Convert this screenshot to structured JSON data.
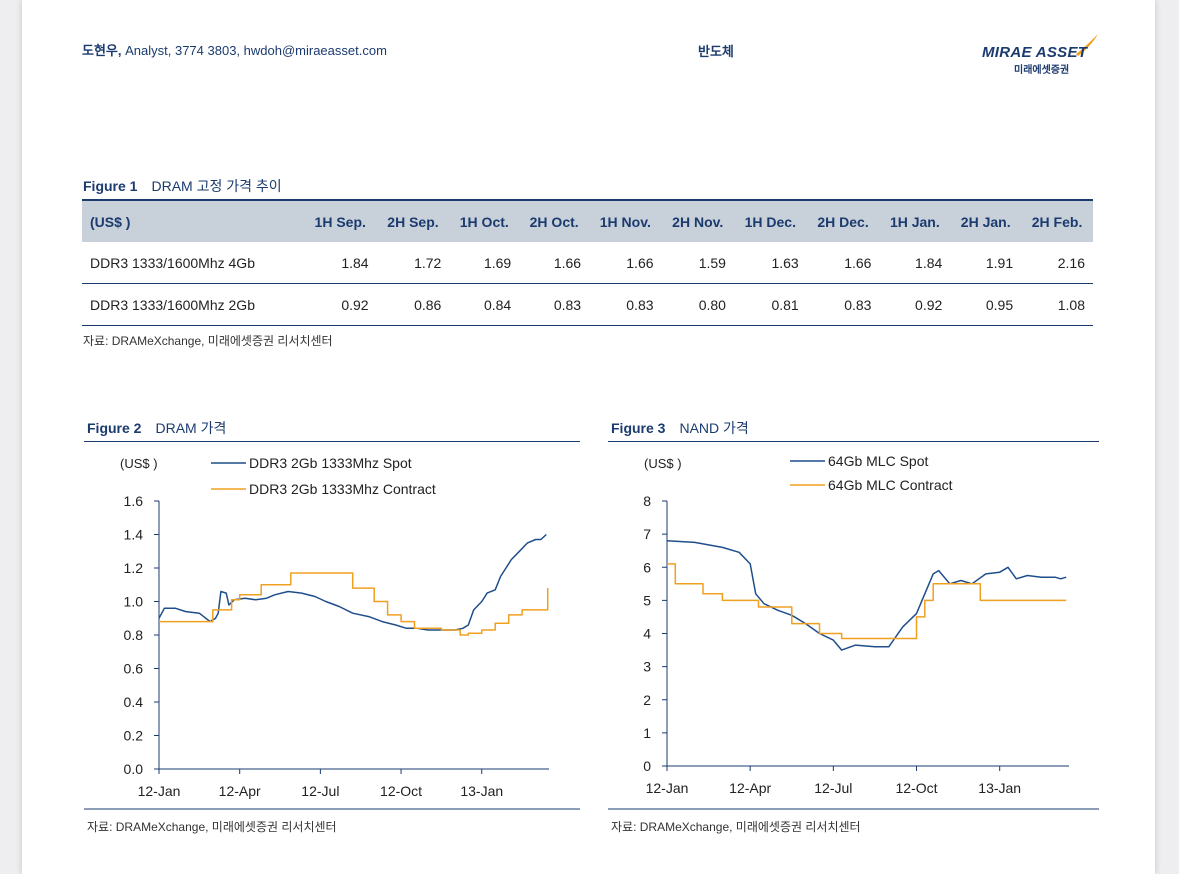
{
  "header": {
    "author_name": "도현우,",
    "author_detail": " Analyst, 3774 3803, hwdoh@miraeasset.com",
    "sector": "반도체",
    "logo_main": "MIRAE ASSET",
    "logo_sub": "미래에셋증권"
  },
  "figure1": {
    "label": "Figure 1",
    "title": "DRAM 고정 가격 추이",
    "unit_header": "(US$ )",
    "columns": [
      "1H Sep.",
      "2H Sep.",
      "1H Oct.",
      "2H Oct.",
      "1H Nov.",
      "2H Nov.",
      "1H Dec.",
      "2H Dec.",
      "1H Jan.",
      "2H Jan.",
      "2H Feb."
    ],
    "rows": [
      {
        "label": "DDR3 1333/1600Mhz 4Gb",
        "values": [
          "1.84",
          "1.72",
          "1.69",
          "1.66",
          "1.66",
          "1.59",
          "1.63",
          "1.66",
          "1.84",
          "1.91",
          "2.16"
        ]
      },
      {
        "label": "DDR3 1333/1600Mhz 2Gb",
        "values": [
          "0.92",
          "0.86",
          "0.84",
          "0.83",
          "0.83",
          "0.80",
          "0.81",
          "0.83",
          "0.92",
          "0.95",
          "1.08"
        ]
      }
    ],
    "source": "자료: DRAMeXchange, 미래에셋증권 리서치센터"
  },
  "figure2": {
    "label": "Figure 2",
    "title": "DRAM 가격",
    "source": "자료: DRAMeXchange, 미래에셋증권 리서치센터"
  },
  "figure3": {
    "label": "Figure 3",
    "title": "NAND 가격",
    "source": "자료: DRAMeXchange, 미래에셋증권 리서치센터"
  },
  "chart_data": [
    {
      "type": "line",
      "unit": "(US$ )",
      "ylim": [
        0,
        1.6
      ],
      "yticks": [
        "0.0",
        "0.2",
        "0.4",
        "0.6",
        "0.8",
        "1.0",
        "1.2",
        "1.4",
        "1.6"
      ],
      "xlim": [
        0,
        14.5
      ],
      "xticks": [
        {
          "label": "12-Jan",
          "x": 0
        },
        {
          "label": "12-Apr",
          "x": 3
        },
        {
          "label": "12-Jul",
          "x": 6
        },
        {
          "label": "12-Oct",
          "x": 9
        },
        {
          "label": "13-Jan",
          "x": 12
        }
      ],
      "series": [
        {
          "name": "DDR3 2Gb 1333Mhz Spot",
          "color": "#1f4e8c",
          "step": false,
          "points": [
            [
              0,
              0.9
            ],
            [
              0.2,
              0.96
            ],
            [
              0.6,
              0.96
            ],
            [
              1,
              0.94
            ],
            [
              1.5,
              0.93
            ],
            [
              1.9,
              0.88
            ],
            [
              2.1,
              0.9
            ],
            [
              2.2,
              0.93
            ],
            [
              2.3,
              1.06
            ],
            [
              2.5,
              1.05
            ],
            [
              2.6,
              0.98
            ],
            [
              2.8,
              1.01
            ],
            [
              3.2,
              1.02
            ],
            [
              3.6,
              1.01
            ],
            [
              4.0,
              1.02
            ],
            [
              4.3,
              1.04
            ],
            [
              4.8,
              1.06
            ],
            [
              5.3,
              1.05
            ],
            [
              5.8,
              1.03
            ],
            [
              6.2,
              1.0
            ],
            [
              6.7,
              0.97
            ],
            [
              7.2,
              0.93
            ],
            [
              7.8,
              0.91
            ],
            [
              8.3,
              0.88
            ],
            [
              8.8,
              0.86
            ],
            [
              9.2,
              0.84
            ],
            [
              9.6,
              0.84
            ],
            [
              10.0,
              0.83
            ],
            [
              10.5,
              0.83
            ],
            [
              11.0,
              0.83
            ],
            [
              11.3,
              0.84
            ],
            [
              11.5,
              0.86
            ],
            [
              11.7,
              0.95
            ],
            [
              12.0,
              1.0
            ],
            [
              12.2,
              1.05
            ],
            [
              12.5,
              1.07
            ],
            [
              12.7,
              1.15
            ],
            [
              12.9,
              1.2
            ],
            [
              13.1,
              1.25
            ],
            [
              13.4,
              1.3
            ],
            [
              13.7,
              1.35
            ],
            [
              14.0,
              1.37
            ],
            [
              14.2,
              1.37
            ],
            [
              14.4,
              1.4
            ]
          ]
        },
        {
          "name": "DDR3 2Gb 1333Mhz Contract",
          "color": "#f0a020",
          "step": true,
          "points": [
            [
              0,
              0.88
            ],
            [
              1.5,
              0.88
            ],
            [
              2.0,
              0.95
            ],
            [
              2.5,
              0.95
            ],
            [
              2.7,
              1.01
            ],
            [
              3.0,
              1.04
            ],
            [
              3.8,
              1.1
            ],
            [
              4.9,
              1.17
            ],
            [
              5.5,
              1.17
            ],
            [
              6.5,
              1.17
            ],
            [
              7.2,
              1.08
            ],
            [
              8.0,
              1.0
            ],
            [
              8.5,
              0.92
            ],
            [
              9.0,
              0.88
            ],
            [
              9.5,
              0.84
            ],
            [
              10.5,
              0.83
            ],
            [
              11.2,
              0.8
            ],
            [
              11.5,
              0.81
            ],
            [
              12.0,
              0.83
            ],
            [
              12.5,
              0.87
            ],
            [
              13.0,
              0.92
            ],
            [
              13.5,
              0.95
            ],
            [
              14.0,
              0.95
            ],
            [
              14.4,
              0.95
            ],
            [
              14.45,
              1.08
            ]
          ]
        }
      ]
    },
    {
      "type": "line",
      "unit": "(US$ )",
      "ylim": [
        0,
        8
      ],
      "yticks": [
        "0",
        "1",
        "2",
        "3",
        "4",
        "5",
        "6",
        "7",
        "8"
      ],
      "xlim": [
        0,
        14.5
      ],
      "xticks": [
        {
          "label": "12-Jan",
          "x": 0
        },
        {
          "label": "12-Apr",
          "x": 3
        },
        {
          "label": "12-Jul",
          "x": 6
        },
        {
          "label": "12-Oct",
          "x": 9
        },
        {
          "label": "13-Jan",
          "x": 12
        }
      ],
      "series": [
        {
          "name": "64Gb MLC Spot",
          "color": "#1f4e8c",
          "step": false,
          "points": [
            [
              0,
              6.8
            ],
            [
              1.0,
              6.75
            ],
            [
              2.0,
              6.6
            ],
            [
              2.6,
              6.45
            ],
            [
              3.0,
              6.1
            ],
            [
              3.2,
              5.2
            ],
            [
              3.5,
              4.9
            ],
            [
              4.0,
              4.7
            ],
            [
              4.5,
              4.55
            ],
            [
              5.0,
              4.3
            ],
            [
              5.5,
              4.0
            ],
            [
              6.0,
              3.8
            ],
            [
              6.3,
              3.5
            ],
            [
              6.8,
              3.65
            ],
            [
              7.5,
              3.6
            ],
            [
              8.0,
              3.6
            ],
            [
              8.5,
              4.2
            ],
            [
              9.0,
              4.6
            ],
            [
              9.3,
              5.2
            ],
            [
              9.6,
              5.8
            ],
            [
              9.8,
              5.9
            ],
            [
              10.2,
              5.5
            ],
            [
              10.6,
              5.6
            ],
            [
              11.0,
              5.5
            ],
            [
              11.5,
              5.8
            ],
            [
              12.0,
              5.85
            ],
            [
              12.3,
              6.0
            ],
            [
              12.6,
              5.65
            ],
            [
              13.0,
              5.75
            ],
            [
              13.5,
              5.7
            ],
            [
              14.0,
              5.7
            ],
            [
              14.2,
              5.65
            ],
            [
              14.4,
              5.7
            ]
          ]
        },
        {
          "name": "64Gb MLC Contract",
          "color": "#f0a020",
          "step": true,
          "points": [
            [
              0,
              6.1
            ],
            [
              0.3,
              5.5
            ],
            [
              1.3,
              5.2
            ],
            [
              2.0,
              5.0
            ],
            [
              3.3,
              4.8
            ],
            [
              4.5,
              4.3
            ],
            [
              5.5,
              4.0
            ],
            [
              6.3,
              3.85
            ],
            [
              7.5,
              3.85
            ],
            [
              8.5,
              3.85
            ],
            [
              9.0,
              4.5
            ],
            [
              9.3,
              5.0
            ],
            [
              9.6,
              5.5
            ],
            [
              10.2,
              5.5
            ],
            [
              11.0,
              5.5
            ],
            [
              11.3,
              5.0
            ],
            [
              13.0,
              5.0
            ],
            [
              14.4,
              5.0
            ]
          ]
        }
      ]
    }
  ]
}
